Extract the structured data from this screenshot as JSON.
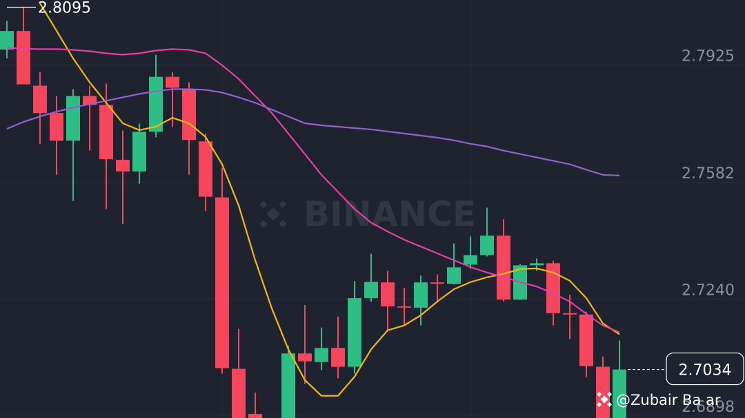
{
  "chart_data": {
    "type": "candlestick",
    "watermark": "BINANCE",
    "credit": "@Zubair Ba ar",
    "ylim": [
      2.6892,
      2.8116
    ],
    "yticks": [
      2.7925,
      2.7582,
      {
        "value": 2.724,
        "label": "2.7240"
      },
      2.6898
    ],
    "grid": true,
    "up_color": "#2ebd85",
    "down_color": "#f6465d",
    "high_marker": 2.8095,
    "last_price": 2.7034,
    "open": [
      2.7971,
      2.8025,
      2.7865,
      2.7785,
      2.7704,
      2.7835,
      2.7809,
      2.7648,
      2.7614,
      2.773,
      2.7891,
      2.7855,
      2.7702,
      2.7538,
      2.7036,
      2.6904,
      null,
      null,
      2.7081,
      2.7056,
      2.7097,
      2.7042,
      2.7243,
      2.7289,
      2.7219,
      2.7215,
      2.7289,
      2.7285,
      2.7341,
      2.7369,
      2.7426,
      2.7239,
      2.7339,
      2.7345,
      2.7199,
      2.7195,
      2.7042,
      null
    ],
    "high": [
      2.8055,
      2.8095,
      2.7905,
      2.7835,
      2.7855,
      2.7865,
      2.7871,
      2.7734,
      2.7754,
      2.7955,
      2.7905,
      2.7875,
      2.7724,
      2.7624,
      2.7153,
      2.6966,
      null,
      2.7103,
      2.7223,
      2.7157,
      2.7189,
      2.7293,
      2.7373,
      2.7323,
      2.7273,
      2.7309,
      2.7313,
      2.7403,
      2.7424,
      2.7508,
      2.7474,
      2.7343,
      2.7359,
      2.7353,
      2.7253,
      2.7203,
      2.7072,
      2.7119
    ],
    "low": [
      2.7945,
      2.7869,
      2.7694,
      2.7604,
      2.7528,
      2.7675,
      2.7504,
      2.746,
      2.7578,
      2.7714,
      2.7744,
      2.7604,
      2.7498,
      2.7022,
      null,
      null,
      null,
      null,
      2.6992,
      2.7032,
      2.7008,
      2.7022,
      2.7233,
      2.7149,
      2.7163,
      2.7163,
      2.7233,
      2.7283,
      2.7329,
      2.7365,
      2.7233,
      2.7237,
      2.7323,
      2.7163,
      2.7123,
      2.7012,
      null,
      null
    ],
    "close": [
      2.8025,
      2.7869,
      2.7785,
      2.7704,
      2.7835,
      2.7809,
      2.765,
      2.7614,
      2.773,
      2.7891,
      2.7859,
      2.7706,
      2.754,
      2.7038,
      null,
      null,
      null,
      2.7081,
      2.7058,
      2.7097,
      2.7042,
      2.7243,
      2.7291,
      2.7219,
      2.7215,
      2.7289,
      2.7285,
      2.7333,
      2.7369,
      2.7426,
      2.7239,
      2.7339,
      2.7345,
      2.7199,
      2.7195,
      2.7044,
      null,
      2.7034
    ],
    "series": [
      {
        "color": "#f0b90b",
        "values": [
          null,
          null,
          2.8106,
          2.8026,
          2.7945,
          2.7875,
          2.7815,
          2.7755,
          2.7735,
          2.7745,
          2.7771,
          2.7755,
          2.7715,
          2.7635,
          2.7514,
          2.7354,
          2.7213,
          2.7093,
          2.7003,
          2.6957,
          2.6957,
          2.7013,
          2.7093,
          2.7149,
          2.7163,
          2.7193,
          2.7233,
          2.7269,
          2.729,
          2.7304,
          2.7314,
          2.7328,
          2.733,
          2.7318,
          2.7294,
          2.7243,
          2.7169,
          2.7137
        ]
      },
      {
        "color": "#e040a8",
        "values": [
          2.7976,
          2.7974,
          2.7972,
          2.7972,
          2.797,
          2.7966,
          2.796,
          2.7956,
          2.796,
          2.7968,
          2.7972,
          2.797,
          2.796,
          2.7925,
          2.7885,
          2.7835,
          2.7785,
          2.7725,
          2.7665,
          2.7604,
          2.7554,
          2.7504,
          2.7464,
          2.7438,
          2.7414,
          2.7394,
          2.7374,
          2.7354,
          2.7334,
          2.7318,
          2.7304,
          2.729,
          2.7277,
          2.7257,
          2.7233,
          2.7197,
          2.7163,
          2.7143
        ]
      },
      {
        "color": "#9460d0",
        "values": [
          2.7739,
          2.7759,
          2.7775,
          2.7789,
          2.7801,
          2.7811,
          2.7821,
          2.7831,
          2.7841,
          2.7849,
          2.7855,
          2.7855,
          2.7853,
          2.7845,
          2.7831,
          2.7815,
          2.7795,
          2.7775,
          2.7755,
          2.7749,
          2.7745,
          2.7741,
          2.7737,
          2.7731,
          2.7725,
          2.7719,
          2.7713,
          2.7705,
          2.7695,
          2.7687,
          2.7675,
          2.7665,
          2.7655,
          2.7645,
          2.7635,
          2.7619,
          2.7604,
          2.7602
        ]
      }
    ]
  }
}
